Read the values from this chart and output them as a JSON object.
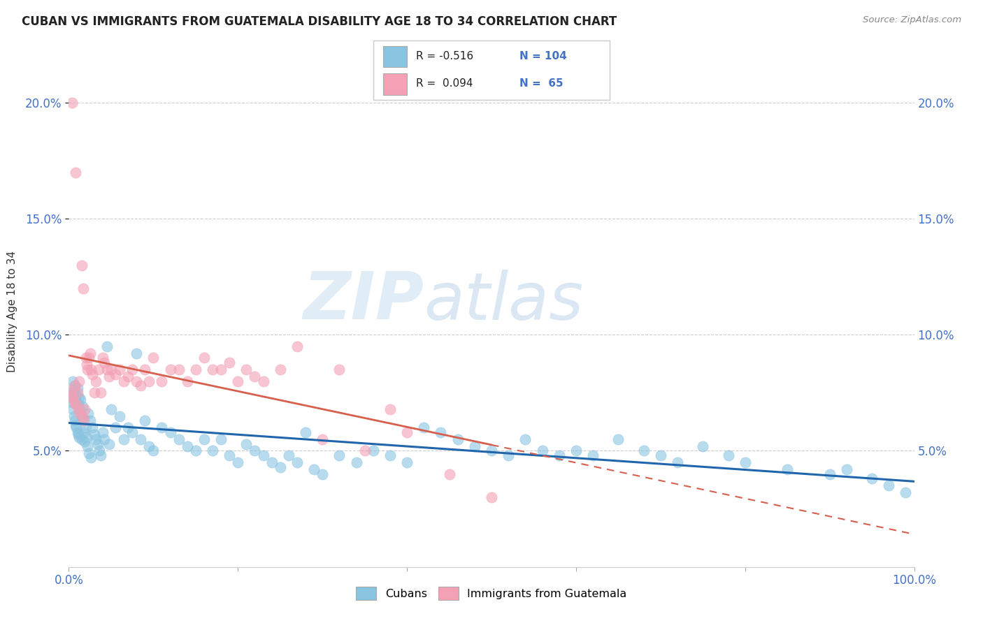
{
  "title": "CUBAN VS IMMIGRANTS FROM GUATEMALA DISABILITY AGE 18 TO 34 CORRELATION CHART",
  "source": "Source: ZipAtlas.com",
  "ylabel": "Disability Age 18 to 34",
  "watermark_zip": "ZIP",
  "watermark_atlas": "atlas",
  "xlim": [
    0.0,
    1.0
  ],
  "ylim": [
    0.0,
    0.22
  ],
  "yticks": [
    0.05,
    0.1,
    0.15,
    0.2
  ],
  "ytick_labels": [
    "5.0%",
    "10.0%",
    "15.0%",
    "20.0%"
  ],
  "color_blue": "#89c4e1",
  "color_pink": "#f4a0b5",
  "trendline_blue": "#2166ac",
  "trendline_pink": "#d6604d",
  "text_color_blue": "#4472c4",
  "background": "#ffffff",
  "cubans_x": [
    0.002,
    0.003,
    0.004,
    0.005,
    0.005,
    0.006,
    0.006,
    0.007,
    0.007,
    0.008,
    0.008,
    0.009,
    0.009,
    0.01,
    0.01,
    0.011,
    0.011,
    0.012,
    0.012,
    0.013,
    0.014,
    0.015,
    0.015,
    0.016,
    0.017,
    0.018,
    0.019,
    0.02,
    0.021,
    0.022,
    0.023,
    0.024,
    0.025,
    0.026,
    0.028,
    0.03,
    0.032,
    0.034,
    0.036,
    0.038,
    0.04,
    0.042,
    0.045,
    0.048,
    0.05,
    0.055,
    0.06,
    0.065,
    0.07,
    0.075,
    0.08,
    0.085,
    0.09,
    0.095,
    0.1,
    0.11,
    0.12,
    0.13,
    0.14,
    0.15,
    0.16,
    0.17,
    0.18,
    0.19,
    0.2,
    0.21,
    0.22,
    0.23,
    0.24,
    0.25,
    0.26,
    0.27,
    0.28,
    0.29,
    0.3,
    0.32,
    0.34,
    0.36,
    0.38,
    0.4,
    0.42,
    0.44,
    0.46,
    0.48,
    0.5,
    0.52,
    0.54,
    0.56,
    0.58,
    0.6,
    0.62,
    0.65,
    0.68,
    0.7,
    0.72,
    0.75,
    0.78,
    0.8,
    0.85,
    0.9,
    0.92,
    0.95,
    0.97,
    0.99
  ],
  "cubans_y": [
    0.075,
    0.073,
    0.071,
    0.08,
    0.068,
    0.076,
    0.065,
    0.078,
    0.063,
    0.072,
    0.061,
    0.074,
    0.06,
    0.077,
    0.058,
    0.07,
    0.057,
    0.073,
    0.056,
    0.068,
    0.072,
    0.065,
    0.055,
    0.069,
    0.063,
    0.058,
    0.054,
    0.06,
    0.056,
    0.052,
    0.066,
    0.049,
    0.063,
    0.047,
    0.06,
    0.057,
    0.055,
    0.053,
    0.05,
    0.048,
    0.058,
    0.055,
    0.095,
    0.053,
    0.068,
    0.06,
    0.065,
    0.055,
    0.06,
    0.058,
    0.092,
    0.055,
    0.063,
    0.052,
    0.05,
    0.06,
    0.058,
    0.055,
    0.052,
    0.05,
    0.055,
    0.05,
    0.055,
    0.048,
    0.045,
    0.053,
    0.05,
    0.048,
    0.045,
    0.043,
    0.048,
    0.045,
    0.058,
    0.042,
    0.04,
    0.048,
    0.045,
    0.05,
    0.048,
    0.045,
    0.06,
    0.058,
    0.055,
    0.052,
    0.05,
    0.048,
    0.055,
    0.05,
    0.048,
    0.05,
    0.048,
    0.055,
    0.05,
    0.048,
    0.045,
    0.052,
    0.048,
    0.045,
    0.042,
    0.04,
    0.042,
    0.038,
    0.035,
    0.032
  ],
  "guatemala_x": [
    0.002,
    0.003,
    0.004,
    0.005,
    0.006,
    0.007,
    0.008,
    0.009,
    0.01,
    0.011,
    0.012,
    0.013,
    0.015,
    0.016,
    0.017,
    0.018,
    0.019,
    0.02,
    0.021,
    0.022,
    0.024,
    0.025,
    0.026,
    0.028,
    0.03,
    0.032,
    0.035,
    0.038,
    0.04,
    0.042,
    0.045,
    0.048,
    0.05,
    0.055,
    0.06,
    0.065,
    0.07,
    0.075,
    0.08,
    0.085,
    0.09,
    0.095,
    0.1,
    0.11,
    0.12,
    0.13,
    0.14,
    0.15,
    0.16,
    0.17,
    0.18,
    0.19,
    0.2,
    0.21,
    0.22,
    0.23,
    0.25,
    0.27,
    0.3,
    0.32,
    0.35,
    0.38,
    0.4,
    0.45,
    0.5
  ],
  "guatemala_y": [
    0.076,
    0.074,
    0.2,
    0.073,
    0.071,
    0.078,
    0.17,
    0.07,
    0.075,
    0.068,
    0.08,
    0.066,
    0.13,
    0.065,
    0.12,
    0.063,
    0.068,
    0.09,
    0.087,
    0.085,
    0.09,
    0.092,
    0.085,
    0.083,
    0.075,
    0.08,
    0.085,
    0.075,
    0.09,
    0.088,
    0.085,
    0.082,
    0.085,
    0.083,
    0.085,
    0.08,
    0.082,
    0.085,
    0.08,
    0.078,
    0.085,
    0.08,
    0.09,
    0.08,
    0.085,
    0.085,
    0.08,
    0.085,
    0.09,
    0.085,
    0.085,
    0.088,
    0.08,
    0.085,
    0.082,
    0.08,
    0.085,
    0.095,
    0.055,
    0.085,
    0.05,
    0.068,
    0.058,
    0.04,
    0.03
  ]
}
